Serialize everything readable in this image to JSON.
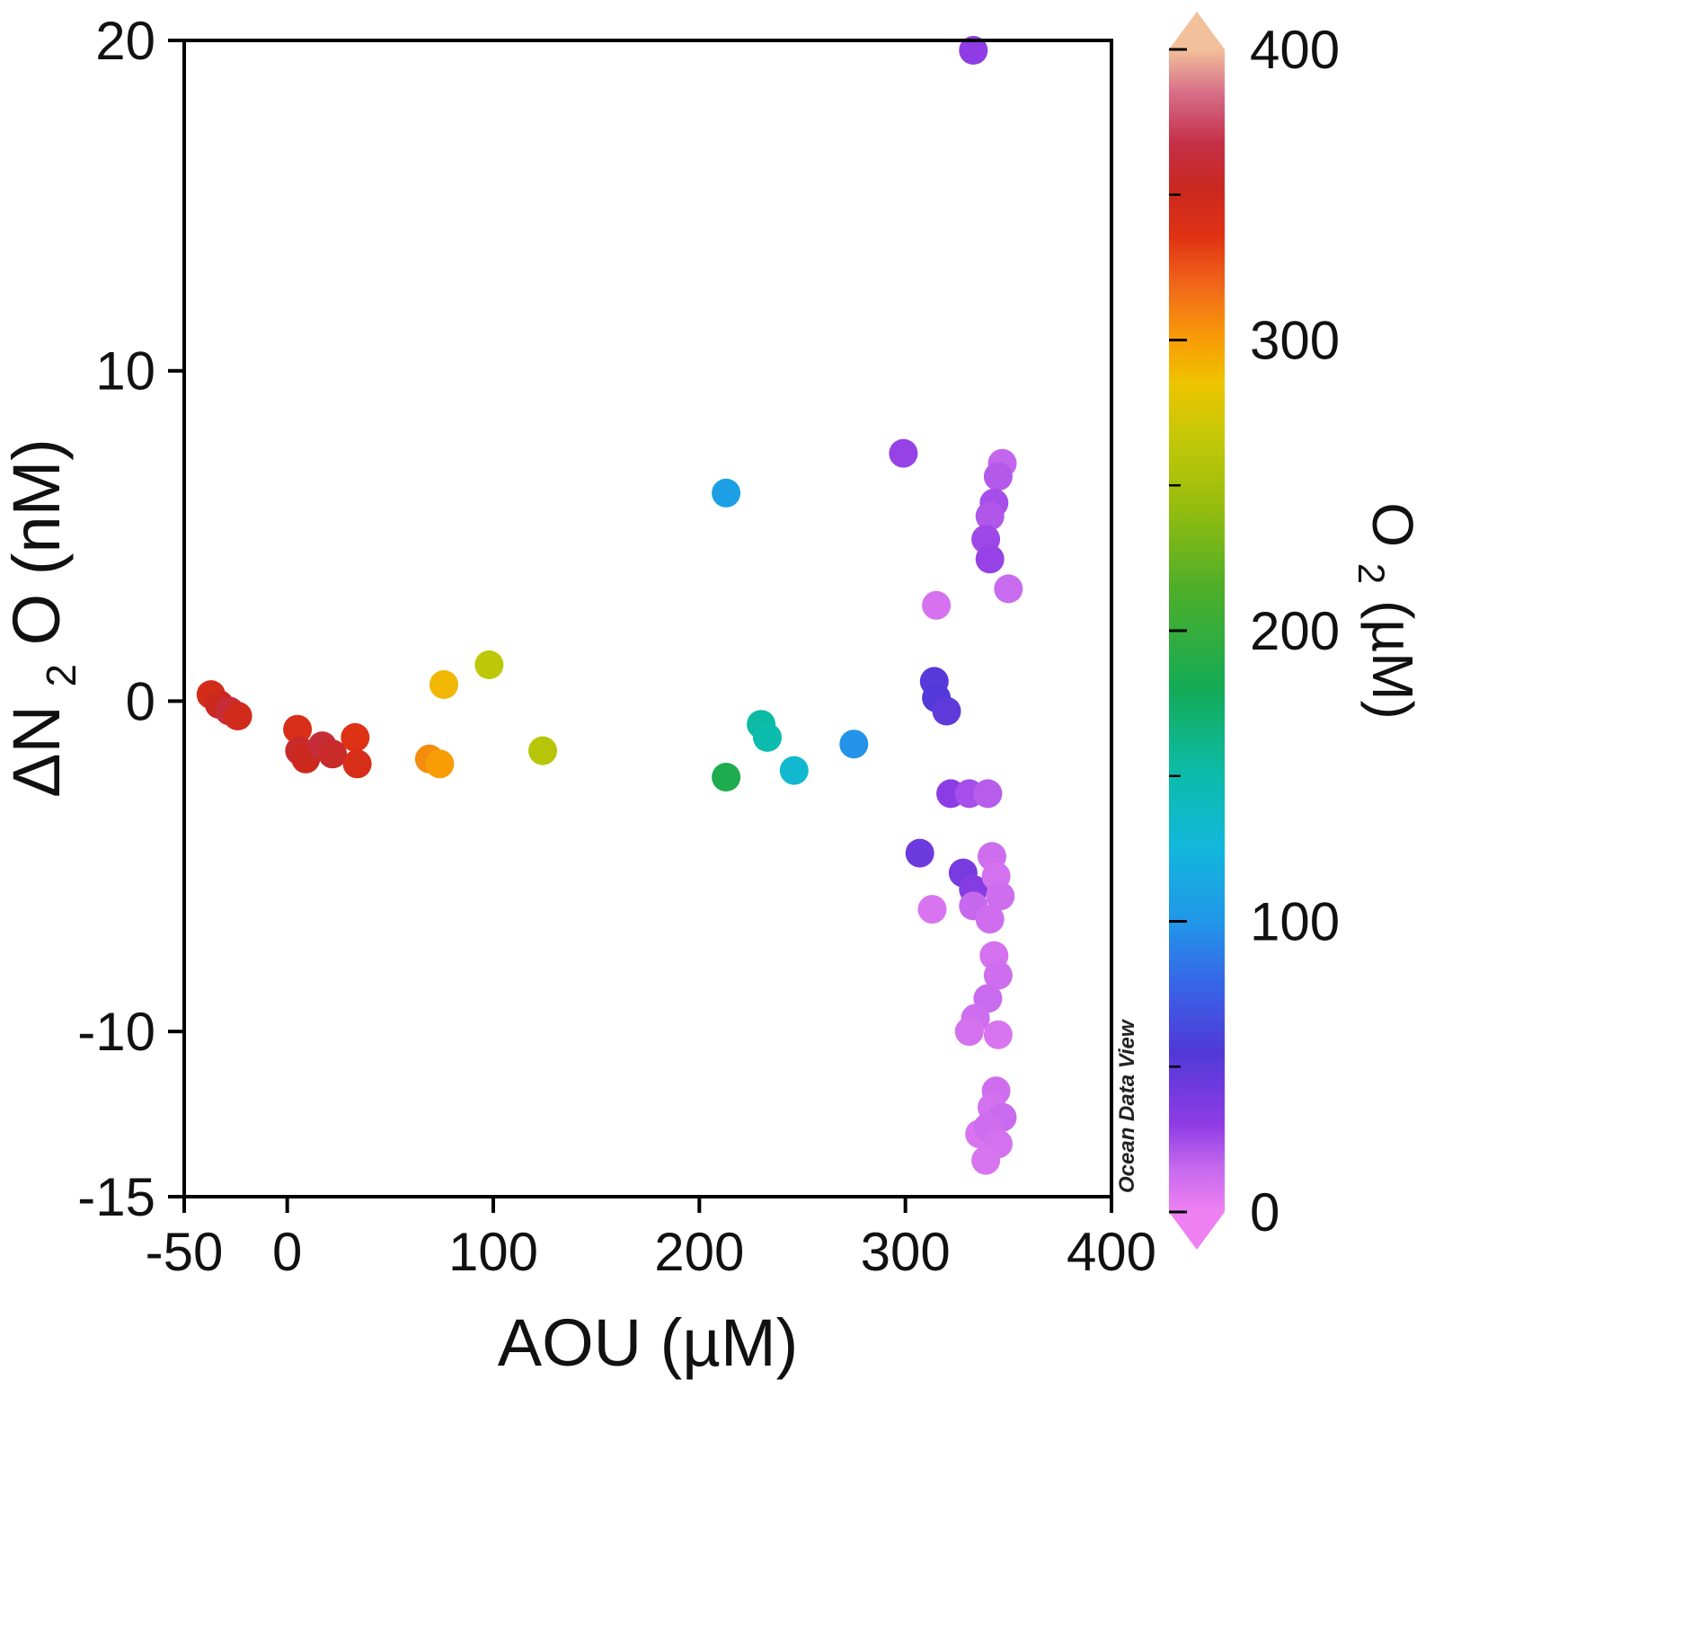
{
  "credit": "Ocean Data View",
  "axes": {
    "x": {
      "label": "AOU (µM)",
      "ticks": [
        -50,
        0,
        100,
        200,
        300,
        400
      ],
      "lim": [
        -50,
        400
      ]
    },
    "y": {
      "label_parts": {
        "prefix": "ΔN",
        "sub": "2",
        "suffix": "O (nM)"
      },
      "label_plain": "ΔN2O (nM)",
      "ticks": [
        20,
        10,
        0,
        -10,
        -15
      ],
      "lim": [
        -15,
        20
      ]
    }
  },
  "colorbar": {
    "label_parts": {
      "prefix": "O",
      "sub": "2",
      "suffix": " (µM)"
    },
    "label_plain": "O2 (µM)",
    "ticks": [
      400,
      300,
      200,
      100,
      0
    ],
    "minor_ticks": [
      350,
      250,
      150,
      50
    ],
    "lim": [
      0,
      400
    ],
    "stops": [
      [
        0,
        "#ef80f2"
      ],
      [
        15,
        "#c669ee"
      ],
      [
        30,
        "#8f3ce5"
      ],
      [
        55,
        "#5039d8"
      ],
      [
        80,
        "#3568e8"
      ],
      [
        100,
        "#2197e8"
      ],
      [
        125,
        "#12b7dc"
      ],
      [
        150,
        "#0cbcab"
      ],
      [
        180,
        "#14ab56"
      ],
      [
        215,
        "#4fae28"
      ],
      [
        245,
        "#9cbe0c"
      ],
      [
        265,
        "#c2c808"
      ],
      [
        285,
        "#eec400"
      ],
      [
        300,
        "#f89d06"
      ],
      [
        318,
        "#f26a1a"
      ],
      [
        335,
        "#e13314"
      ],
      [
        352,
        "#c9281f"
      ],
      [
        368,
        "#c53049"
      ],
      [
        385,
        "#d76f88"
      ],
      [
        400,
        "#f2c09a"
      ]
    ]
  },
  "chart_data": {
    "type": "scatter",
    "title": "",
    "xlabel": "AOU (µM)",
    "ylabel": "ΔN2O (nM)",
    "color_label": "O2 (µM)",
    "xlim": [
      -50,
      400
    ],
    "ylim": [
      -15,
      20
    ],
    "clim": [
      0,
      400
    ],
    "grid": false,
    "marker_radius": 16,
    "points_format": [
      "AOU_uM",
      "dN2O_nM",
      "O2_uM"
    ],
    "points": [
      [
        -37,
        0.2,
        345
      ],
      [
        -33,
        -0.1,
        350
      ],
      [
        -28,
        -0.3,
        362
      ],
      [
        -24,
        -0.45,
        347
      ],
      [
        5,
        -0.85,
        341
      ],
      [
        6,
        -1.5,
        356
      ],
      [
        9,
        -1.75,
        350
      ],
      [
        17,
        -1.35,
        362
      ],
      [
        22,
        -1.6,
        356
      ],
      [
        33,
        -1.1,
        337
      ],
      [
        34,
        -1.9,
        343
      ],
      [
        69,
        -1.75,
        306
      ],
      [
        74,
        -1.9,
        300
      ],
      [
        76,
        0.5,
        290
      ],
      [
        98,
        1.1,
        263
      ],
      [
        124,
        -1.5,
        259
      ],
      [
        213,
        -2.3,
        186
      ],
      [
        230,
        -0.7,
        152
      ],
      [
        233,
        -1.1,
        149
      ],
      [
        246,
        -2.1,
        131
      ],
      [
        275,
        -1.3,
        98
      ],
      [
        213,
        6.3,
        106
      ],
      [
        333,
        19.7,
        30
      ],
      [
        299,
        7.5,
        28
      ],
      [
        347,
        7.2,
        16
      ],
      [
        345,
        6.8,
        20
      ],
      [
        343,
        6.0,
        24
      ],
      [
        341,
        5.6,
        21
      ],
      [
        339,
        4.9,
        26
      ],
      [
        341,
        4.3,
        28
      ],
      [
        350,
        3.4,
        14
      ],
      [
        315,
        2.9,
        9
      ],
      [
        314,
        0.6,
        52
      ],
      [
        315,
        0.1,
        54
      ],
      [
        320,
        -0.3,
        49
      ],
      [
        322,
        -2.8,
        31
      ],
      [
        331,
        -2.8,
        24
      ],
      [
        340,
        -2.8,
        19
      ],
      [
        307,
        -4.6,
        44
      ],
      [
        328,
        -5.2,
        39
      ],
      [
        333,
        -5.7,
        34
      ],
      [
        342,
        -4.7,
        12
      ],
      [
        344,
        -5.3,
        10
      ],
      [
        346,
        -5.9,
        12
      ],
      [
        313,
        -6.3,
        8
      ],
      [
        333,
        -6.2,
        15
      ],
      [
        341,
        -6.6,
        12
      ],
      [
        343,
        -7.7,
        10
      ],
      [
        345,
        -8.3,
        12
      ],
      [
        340,
        -9.0,
        14
      ],
      [
        334,
        -9.6,
        12
      ],
      [
        331,
        -10.0,
        10
      ],
      [
        345,
        -10.1,
        8
      ],
      [
        344,
        -11.8,
        12
      ],
      [
        342,
        -12.3,
        10
      ],
      [
        347,
        -12.6,
        14
      ],
      [
        336,
        -13.1,
        8
      ],
      [
        340,
        -12.9,
        12
      ],
      [
        345,
        -13.4,
        10
      ],
      [
        339,
        -13.9,
        8
      ]
    ]
  }
}
